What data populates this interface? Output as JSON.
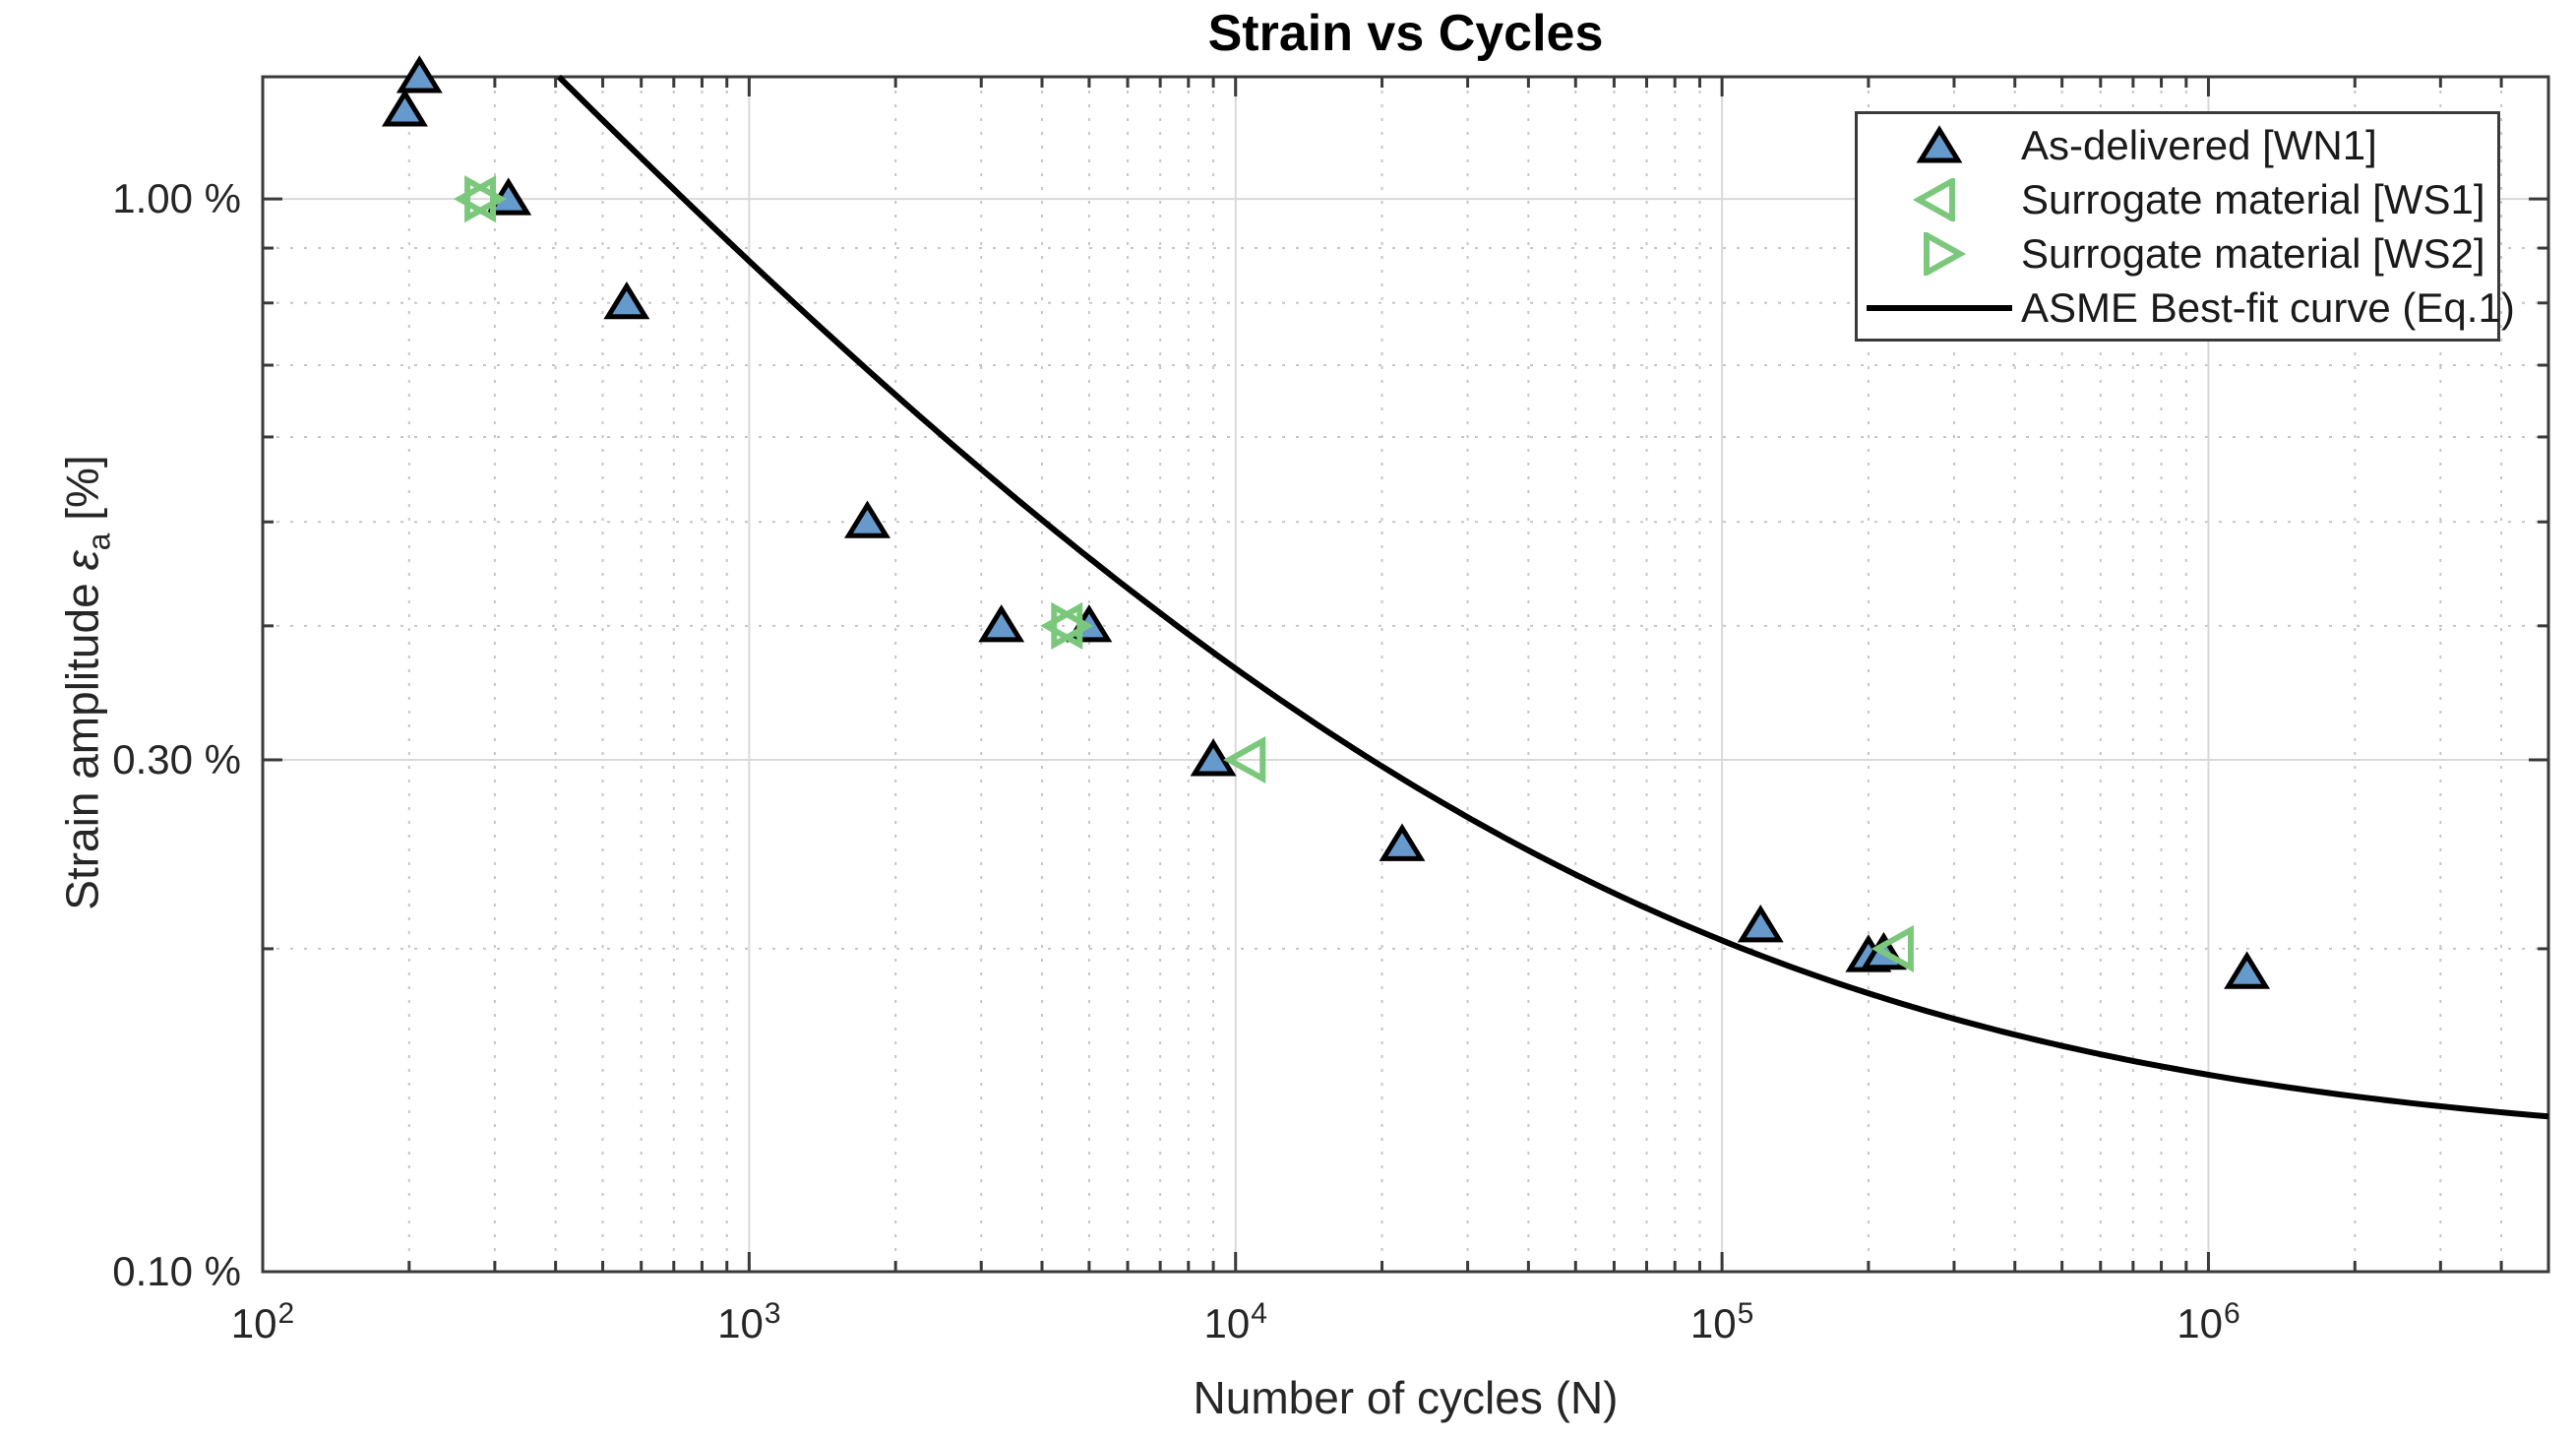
{
  "figure": {
    "background": "#ffffff"
  },
  "chart_data": {
    "type": "scatter",
    "title": "Strain vs Cycles",
    "x_axis": {
      "label": "Number of cycles (N)",
      "scale": "log",
      "min": 100,
      "max": 5000000,
      "ticks": [
        {
          "mantissa": "10",
          "exponent": "2",
          "value": 100
        },
        {
          "mantissa": "10",
          "exponent": "3",
          "value": 1000
        },
        {
          "mantissa": "10",
          "exponent": "4",
          "value": 10000
        },
        {
          "mantissa": "10",
          "exponent": "5",
          "value": 100000
        },
        {
          "mantissa": "10",
          "exponent": "6",
          "value": 1000000
        }
      ],
      "minor_multiples": [
        2,
        3,
        4,
        5,
        6,
        7,
        8,
        9
      ],
      "grid": true
    },
    "y_axis": {
      "label_prefix": "Strain amplitude ",
      "label_symbol": "ε",
      "label_subscript": "a",
      "label_suffix": " [%]",
      "scale": "log",
      "min": 0.1,
      "max": 1.3,
      "ticks": [
        {
          "label": "1.00 %",
          "value": 1.0
        },
        {
          "label": "0.30 %",
          "value": 0.3
        },
        {
          "label": "0.10 %",
          "value": 0.1
        }
      ],
      "minor_gridlines": [
        0.2,
        0.4,
        0.5,
        0.6,
        0.7,
        0.8,
        0.9
      ],
      "grid": true
    },
    "series": [
      {
        "name": "As-delivered [WN1]",
        "marker": "triangle-up",
        "filled": true,
        "fill": "#6699CC",
        "edge": "#000000",
        "points": [
          [
            210,
            1.3
          ],
          [
            196,
            1.21
          ],
          [
            320,
            1.0
          ],
          [
            560,
            0.8
          ],
          [
            1750,
            0.5
          ],
          [
            3300,
            0.4
          ],
          [
            5000,
            0.4
          ],
          [
            9000,
            0.3
          ],
          [
            22000,
            0.25
          ],
          [
            120000,
            0.21
          ],
          [
            200000,
            0.197
          ],
          [
            215000,
            0.198
          ],
          [
            1200000,
            0.19
          ]
        ]
      },
      {
        "name": "Surrogate material [WS1]",
        "marker": "triangle-left",
        "filled": false,
        "edge": "#7BC87C",
        "points": [
          [
            280,
            1.0
          ],
          [
            4500,
            0.4
          ],
          [
            10700,
            0.3
          ],
          [
            230000,
            0.2
          ]
        ]
      },
      {
        "name": "Surrogate material [WS2]",
        "marker": "triangle-right",
        "filled": false,
        "edge": "#7BC87C",
        "points": [
          [
            280,
            1.0
          ],
          [
            4500,
            0.4
          ]
        ]
      }
    ],
    "curve": {
      "name": "ASME Best-fit curve (Eq.1)",
      "equation": "eps_a[%] = 23.6 * N^(-0.5) + 0.129",
      "A": 23.6,
      "exponent": -0.5,
      "C": 0.129,
      "n_start": 100,
      "n_end": 5000000,
      "color": "#000000",
      "width": 6
    },
    "legend": {
      "position": "top-right",
      "items": [
        {
          "label": "As-delivered [WN1]",
          "marker": "triangle-up",
          "color": "#6699CC",
          "filled": true
        },
        {
          "label": "Surrogate material [WS1]",
          "marker": "triangle-left",
          "color": "#7BC87C",
          "filled": false
        },
        {
          "label": "Surrogate material [WS2]",
          "marker": "triangle-right",
          "color": "#7BC87C",
          "filled": false
        },
        {
          "label": "ASME Best-fit curve (Eq.1)",
          "marker": "line",
          "color": "#000000",
          "filled": false
        }
      ]
    }
  },
  "style": {
    "colors": {
      "axis": "#3a3a3a",
      "text": "#262626",
      "grid_major": "#d9d9d9",
      "grid_minor": "#c6c6c6",
      "marker_blue_fill": "#6699CC",
      "marker_edge": "#000000",
      "marker_green": "#7BC87C",
      "curve": "#000000",
      "legend_border": "#3a3a3a"
    }
  }
}
